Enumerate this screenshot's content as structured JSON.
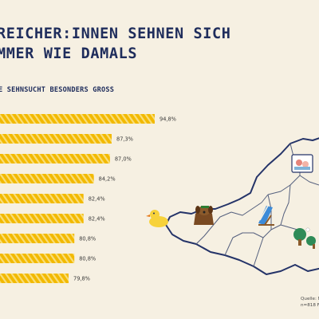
{
  "title_line1": "REICHER:INNEN SEHNEN SICH",
  "title_line2": "MMER WIE DAMALS",
  "subtitle": "E SEHNSUCHT BESONDERS GROSS",
  "source_line1": "Quelle: M",
  "source_line2": "n=818 F",
  "colors": {
    "background": "#f6f0e2",
    "bar": "#f2b900",
    "bar_stripe": "#f9de7a",
    "navy": "#1f2d5c"
  },
  "icons": [
    "rubber-duck-icon",
    "dog-icon",
    "deckchair-icon",
    "table-tennis-icon",
    "photo-frame-icon"
  ],
  "chart_data": {
    "type": "bar",
    "orientation": "horizontal",
    "categories": [
      "",
      "",
      "",
      "",
      "",
      "",
      "",
      "",
      ""
    ],
    "values": [
      94.8,
      87.3,
      87.0,
      84.2,
      82.4,
      82.4,
      80.8,
      80.8,
      79.8
    ],
    "labels": [
      "94,8%",
      "87,3%",
      "87,0%",
      "84,2%",
      "82,4%",
      "82,4%",
      "80,8%",
      "80,8%",
      "79,8%"
    ]
  }
}
